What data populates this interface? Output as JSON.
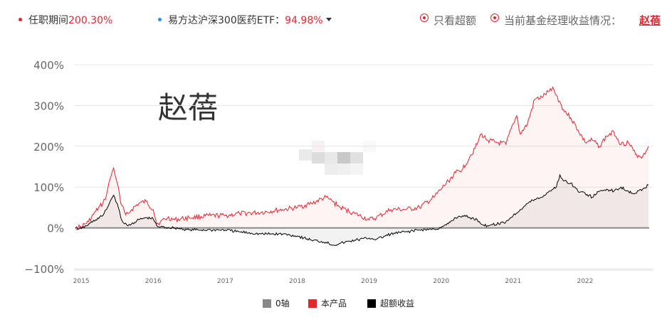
{
  "header": {
    "tenure_label": "任职期间",
    "tenure_value": "200.30%",
    "benchmark_label": "易方达沪深300医药ETF：",
    "benchmark_value": "94.98%",
    "only_excess_label": "只看超额",
    "current_manager_label": "当前基金经理收益情况：",
    "current_manager_name": "赵蓓"
  },
  "watermark": "赵蓓",
  "colors": {
    "product": "#e8232d",
    "excess": "#000000",
    "zero_axis": "#888888",
    "benchmark_dot": "#2a8fe8"
  },
  "chart_data": {
    "type": "line",
    "ylim": [
      -100,
      400
    ],
    "xlim": [
      2014.9,
      2022.95
    ],
    "y_ticks": [
      "400%",
      "300%",
      "200%",
      "100%",
      "0%",
      "−100%"
    ],
    "y_tick_values": [
      400,
      300,
      200,
      100,
      0,
      -100
    ],
    "x_ticks": [
      "2015",
      "2016",
      "2017",
      "2018",
      "2019",
      "2020",
      "2021",
      "2022"
    ],
    "x_tick_values": [
      2015,
      2016,
      2017,
      2018,
      2019,
      2020,
      2021,
      2022
    ],
    "legend": [
      "0轴",
      "本产品",
      "超额收益"
    ],
    "grid": true,
    "series": [
      {
        "name": "本产品",
        "x": [
          2014.92,
          2015.0,
          2015.1,
          2015.2,
          2015.3,
          2015.35,
          2015.4,
          2015.45,
          2015.5,
          2015.55,
          2015.6,
          2015.65,
          2015.7,
          2015.8,
          2015.9,
          2016.0,
          2016.05,
          2016.1,
          2016.2,
          2016.3,
          2016.5,
          2016.8,
          2017.0,
          2017.2,
          2017.5,
          2017.8,
          2018.0,
          2018.2,
          2018.4,
          2018.45,
          2018.6,
          2018.8,
          2019.0,
          2019.1,
          2019.3,
          2019.5,
          2019.7,
          2019.9,
          2020.0,
          2020.1,
          2020.2,
          2020.3,
          2020.4,
          2020.5,
          2020.55,
          2020.65,
          2020.75,
          2020.9,
          2021.0,
          2021.05,
          2021.1,
          2021.2,
          2021.3,
          2021.4,
          2021.5,
          2021.55,
          2021.6,
          2021.7,
          2021.8,
          2021.9,
          2022.0,
          2022.1,
          2022.2,
          2022.3,
          2022.4,
          2022.5,
          2022.6,
          2022.7,
          2022.8,
          2022.88
        ],
        "y": [
          0,
          3,
          15,
          40,
          60,
          80,
          120,
          147,
          110,
          60,
          40,
          35,
          45,
          60,
          65,
          45,
          10,
          15,
          25,
          20,
          25,
          30,
          30,
          35,
          38,
          45,
          50,
          60,
          75,
          70,
          50,
          35,
          20,
          25,
          45,
          45,
          50,
          75,
          95,
          115,
          135,
          145,
          175,
          205,
          230,
          215,
          210,
          205,
          255,
          275,
          230,
          255,
          315,
          320,
          335,
          345,
          325,
          290,
          270,
          240,
          210,
          215,
          200,
          225,
          235,
          205,
          210,
          180,
          175,
          200
        ]
      },
      {
        "name": "超额收益",
        "x": [
          2014.92,
          2015.0,
          2015.1,
          2015.2,
          2015.3,
          2015.35,
          2015.4,
          2015.45,
          2015.5,
          2015.55,
          2015.6,
          2015.65,
          2015.7,
          2015.8,
          2015.9,
          2016.0,
          2016.05,
          2016.1,
          2016.3,
          2016.5,
          2016.8,
          2017.0,
          2017.2,
          2017.5,
          2017.8,
          2018.0,
          2018.2,
          2018.4,
          2018.5,
          2018.6,
          2018.8,
          2019.0,
          2019.1,
          2019.3,
          2019.5,
          2019.7,
          2019.9,
          2020.0,
          2020.1,
          2020.2,
          2020.3,
          2020.4,
          2020.5,
          2020.6,
          2020.7,
          2020.8,
          2020.9,
          2021.0,
          2021.1,
          2021.2,
          2021.3,
          2021.4,
          2021.5,
          2021.6,
          2021.65,
          2021.7,
          2021.8,
          2021.9,
          2022.0,
          2022.1,
          2022.2,
          2022.3,
          2022.4,
          2022.5,
          2022.6,
          2022.7,
          2022.8,
          2022.88
        ],
        "y": [
          0,
          -2,
          8,
          20,
          30,
          45,
          65,
          80,
          60,
          25,
          10,
          5,
          10,
          20,
          25,
          22,
          5,
          2,
          0,
          -5,
          -5,
          -5,
          -10,
          -15,
          -15,
          -20,
          -30,
          -35,
          -42,
          -38,
          -30,
          -25,
          -28,
          -15,
          -10,
          -5,
          -3,
          0,
          10,
          25,
          30,
          25,
          20,
          5,
          8,
          10,
          15,
          30,
          45,
          60,
          70,
          75,
          90,
          100,
          130,
          115,
          110,
          90,
          85,
          75,
          90,
          95,
          90,
          100,
          90,
          85,
          95,
          105
        ]
      }
    ]
  }
}
